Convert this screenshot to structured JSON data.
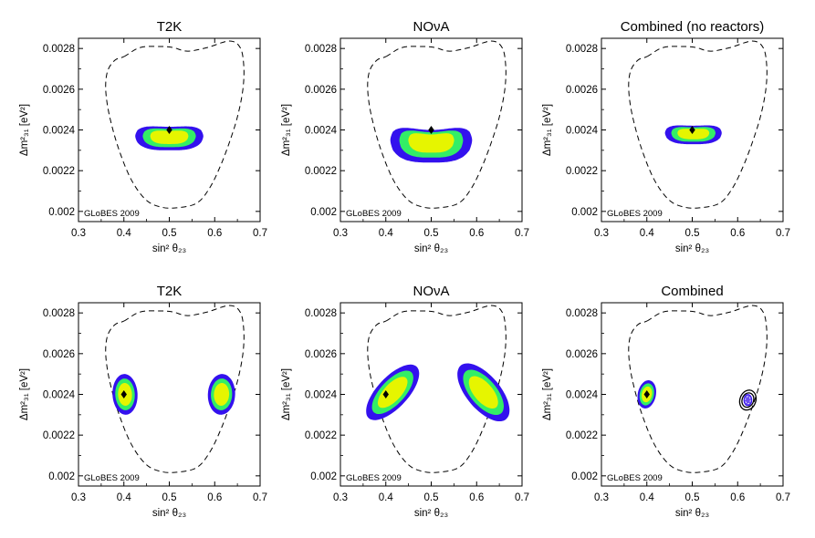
{
  "figure": {
    "credit": "GLoBES 2009",
    "xlabel": "sin² θ₂₃",
    "ylabel": "Δm²₃₁ [eV²]",
    "x_ticks": [
      "0.3",
      "0.4",
      "0.5",
      "0.6",
      "0.7"
    ],
    "y_ticks": [
      "0.002",
      "0.0022",
      "0.0024",
      "0.0026",
      "0.0028"
    ],
    "colors": {
      "contour_1sigma": "#e6f500",
      "contour_2sigma": "#33ee66",
      "contour_3sigma": "#3311ee",
      "outer_boundary": "#000000",
      "inner_overlay": "#000000"
    }
  },
  "chart_data": [
    {
      "type": "contour",
      "title": "T2K",
      "xlim": [
        0.3,
        0.7
      ],
      "ylim": [
        0.00195,
        0.00285
      ],
      "true_values": [
        {
          "x": 0.5,
          "y": 0.0024
        }
      ],
      "fit_regions": [
        {
          "x_range": [
            0.425,
            0.575
          ],
          "y_range": [
            0.0023,
            0.00244
          ]
        }
      ],
      "outer_dashed": {
        "x_range": [
          0.33,
          0.68
        ],
        "y_range": [
          0.00202,
          0.00282
        ]
      }
    },
    {
      "type": "contour",
      "title": "NOνA",
      "xlim": [
        0.3,
        0.7
      ],
      "ylim": [
        0.00195,
        0.00285
      ],
      "true_values": [
        {
          "x": 0.5,
          "y": 0.0024
        }
      ],
      "fit_regions": [
        {
          "x_range": [
            0.41,
            0.59
          ],
          "y_range": [
            0.00224,
            0.00246
          ]
        }
      ],
      "outer_dashed": {
        "x_range": [
          0.33,
          0.68
        ],
        "y_range": [
          0.00202,
          0.00282
        ]
      }
    },
    {
      "type": "contour",
      "title": "Combined (no reactors)",
      "xlim": [
        0.3,
        0.7
      ],
      "ylim": [
        0.00195,
        0.00285
      ],
      "true_values": [
        {
          "x": 0.5,
          "y": 0.0024
        }
      ],
      "fit_regions": [
        {
          "x_range": [
            0.44,
            0.565
          ],
          "y_range": [
            0.00233,
            0.00244
          ]
        }
      ],
      "outer_dashed": {
        "x_range": [
          0.33,
          0.68
        ],
        "y_range": [
          0.00202,
          0.00282
        ]
      }
    },
    {
      "type": "contour",
      "title": "T2K",
      "xlim": [
        0.3,
        0.7
      ],
      "ylim": [
        0.00195,
        0.00285
      ],
      "true_values": [
        {
          "x": 0.4,
          "y": 0.0024
        }
      ],
      "fit_regions": [
        {
          "x_range": [
            0.375,
            0.43
          ],
          "y_range": [
            0.0023,
            0.0025
          ]
        },
        {
          "x_range": [
            0.585,
            0.645
          ],
          "y_range": [
            0.0023,
            0.0025
          ]
        }
      ],
      "outer_dashed": {
        "x_range": [
          0.33,
          0.68
        ],
        "y_range": [
          0.00202,
          0.00282
        ]
      }
    },
    {
      "type": "contour",
      "title": "NOνA",
      "xlim": [
        0.3,
        0.7
      ],
      "ylim": [
        0.00195,
        0.00285
      ],
      "true_values": [
        {
          "x": 0.4,
          "y": 0.0024
        }
      ],
      "fit_regions": [
        {
          "x_range": [
            0.36,
            0.47
          ],
          "y_range": [
            0.00226,
            0.00256
          ]
        },
        {
          "x_range": [
            0.555,
            0.675
          ],
          "y_range": [
            0.00226,
            0.00256
          ]
        }
      ],
      "outer_dashed": {
        "x_range": [
          0.33,
          0.68
        ],
        "y_range": [
          0.00202,
          0.00282
        ]
      }
    },
    {
      "type": "contour",
      "title": "Combined",
      "xlim": [
        0.3,
        0.7
      ],
      "ylim": [
        0.00195,
        0.00285
      ],
      "true_values": [
        {
          "x": 0.4,
          "y": 0.0024
        }
      ],
      "fit_regions": [
        {
          "x_range": [
            0.38,
            0.42
          ],
          "y_range": [
            0.00233,
            0.00247
          ]
        },
        {
          "x_range": [
            0.605,
            0.64
          ],
          "y_range": [
            0.00234,
            0.00244
          ]
        }
      ],
      "outer_dashed": {
        "x_range": [
          0.33,
          0.68
        ],
        "y_range": [
          0.00202,
          0.00282
        ]
      }
    }
  ]
}
